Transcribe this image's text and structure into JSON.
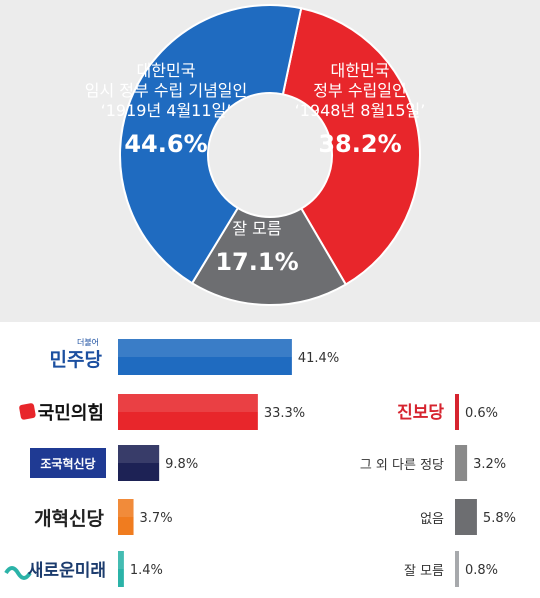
{
  "chart_data": [
    {
      "type": "pie",
      "donut": true,
      "slices": [
        {
          "label_lines": [
            "대한민국",
            "정부 수립일인",
            "‘1948년 8월15일’"
          ],
          "value_text": "38.2%",
          "value": 38.2,
          "color": "#e8262b"
        },
        {
          "label_lines": [
            "잘 모름"
          ],
          "value_text": "17.1%",
          "value": 17.1,
          "color": "#6d6e71"
        },
        {
          "label_lines": [
            "대한민국",
            "임시 정부 수립 기념일인",
            "‘1919년 4월11일’"
          ],
          "value_text": "44.6%",
          "value": 44.6,
          "color": "#1f6bc0"
        }
      ]
    },
    {
      "type": "bar",
      "orientation": "horizontal",
      "columns": [
        {
          "bars": [
            {
              "logo": "민주당",
              "logo_small": "더불어",
              "value": 41.4,
              "label": "41.4%",
              "color": "#1f6bc0",
              "logo_color": "#1b4fa0"
            },
            {
              "logo": "국민의힘",
              "value": 33.3,
              "label": "33.3%",
              "color": "#e8262b",
              "logo_color": "#111111"
            },
            {
              "logo": "조국혁신당",
              "value": 9.8,
              "label": "9.8%",
              "color": "#1d2255",
              "logo_color": "#ffffff"
            },
            {
              "logo": "개혁신당",
              "value": 3.7,
              "label": "3.7%",
              "color": "#f07c1f",
              "logo_color": "#222222"
            },
            {
              "logo": "새로운미래",
              "value": 1.4,
              "label": "1.4%",
              "color": "#2bb3a8",
              "logo_color": "#1c3c6e"
            }
          ]
        },
        {
          "bars": [
            {
              "logo": "진보당",
              "value": 0.6,
              "label": "0.6%",
              "color": "#d6242f",
              "logo_color": "#d6242f"
            },
            {
              "logo": "그 외 다른 정당",
              "value": 3.2,
              "label": "3.2%",
              "color": "#8a8a8a",
              "logo_color": "#333333"
            },
            {
              "logo": "없음",
              "value": 5.8,
              "label": "5.8%",
              "color": "#6d6e71",
              "logo_color": "#333333"
            },
            {
              "logo": "잘 모름",
              "value": 0.8,
              "label": "0.8%",
              "color": "#a7a9ac",
              "logo_color": "#333333"
            }
          ]
        }
      ]
    }
  ]
}
